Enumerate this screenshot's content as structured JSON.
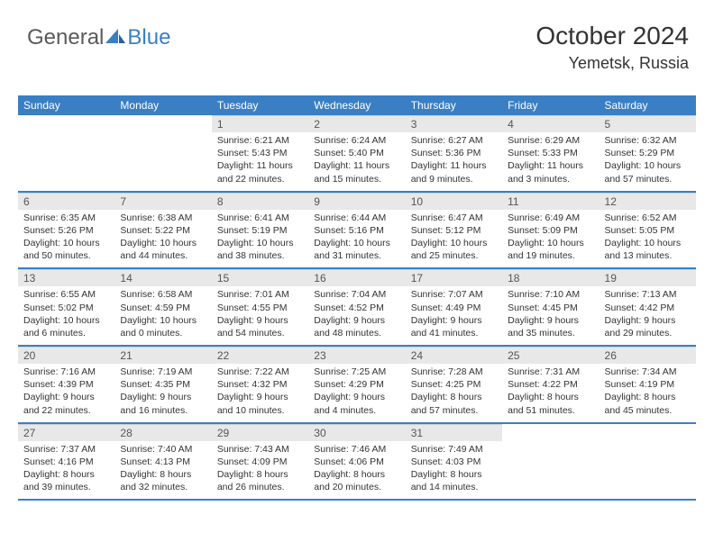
{
  "logo": {
    "general": "General",
    "blue": "Blue"
  },
  "header": {
    "month": "October 2024",
    "location": "Yemetsk, Russia"
  },
  "dayNames": [
    "Sunday",
    "Monday",
    "Tuesday",
    "Wednesday",
    "Thursday",
    "Friday",
    "Saturday"
  ],
  "colors": {
    "headerBlue": "#3a7fc4",
    "dayNumBg": "#e8e8e8",
    "text": "#333333",
    "borderBlue": "#3a7fc4"
  },
  "weeks": [
    [
      null,
      null,
      {
        "n": "1",
        "sunrise": "6:21 AM",
        "sunset": "5:43 PM",
        "daylight": "11 hours and 22 minutes."
      },
      {
        "n": "2",
        "sunrise": "6:24 AM",
        "sunset": "5:40 PM",
        "daylight": "11 hours and 15 minutes."
      },
      {
        "n": "3",
        "sunrise": "6:27 AM",
        "sunset": "5:36 PM",
        "daylight": "11 hours and 9 minutes."
      },
      {
        "n": "4",
        "sunrise": "6:29 AM",
        "sunset": "5:33 PM",
        "daylight": "11 hours and 3 minutes."
      },
      {
        "n": "5",
        "sunrise": "6:32 AM",
        "sunset": "5:29 PM",
        "daylight": "10 hours and 57 minutes."
      }
    ],
    [
      {
        "n": "6",
        "sunrise": "6:35 AM",
        "sunset": "5:26 PM",
        "daylight": "10 hours and 50 minutes."
      },
      {
        "n": "7",
        "sunrise": "6:38 AM",
        "sunset": "5:22 PM",
        "daylight": "10 hours and 44 minutes."
      },
      {
        "n": "8",
        "sunrise": "6:41 AM",
        "sunset": "5:19 PM",
        "daylight": "10 hours and 38 minutes."
      },
      {
        "n": "9",
        "sunrise": "6:44 AM",
        "sunset": "5:16 PM",
        "daylight": "10 hours and 31 minutes."
      },
      {
        "n": "10",
        "sunrise": "6:47 AM",
        "sunset": "5:12 PM",
        "daylight": "10 hours and 25 minutes."
      },
      {
        "n": "11",
        "sunrise": "6:49 AM",
        "sunset": "5:09 PM",
        "daylight": "10 hours and 19 minutes."
      },
      {
        "n": "12",
        "sunrise": "6:52 AM",
        "sunset": "5:05 PM",
        "daylight": "10 hours and 13 minutes."
      }
    ],
    [
      {
        "n": "13",
        "sunrise": "6:55 AM",
        "sunset": "5:02 PM",
        "daylight": "10 hours and 6 minutes."
      },
      {
        "n": "14",
        "sunrise": "6:58 AM",
        "sunset": "4:59 PM",
        "daylight": "10 hours and 0 minutes."
      },
      {
        "n": "15",
        "sunrise": "7:01 AM",
        "sunset": "4:55 PM",
        "daylight": "9 hours and 54 minutes."
      },
      {
        "n": "16",
        "sunrise": "7:04 AM",
        "sunset": "4:52 PM",
        "daylight": "9 hours and 48 minutes."
      },
      {
        "n": "17",
        "sunrise": "7:07 AM",
        "sunset": "4:49 PM",
        "daylight": "9 hours and 41 minutes."
      },
      {
        "n": "18",
        "sunrise": "7:10 AM",
        "sunset": "4:45 PM",
        "daylight": "9 hours and 35 minutes."
      },
      {
        "n": "19",
        "sunrise": "7:13 AM",
        "sunset": "4:42 PM",
        "daylight": "9 hours and 29 minutes."
      }
    ],
    [
      {
        "n": "20",
        "sunrise": "7:16 AM",
        "sunset": "4:39 PM",
        "daylight": "9 hours and 22 minutes."
      },
      {
        "n": "21",
        "sunrise": "7:19 AM",
        "sunset": "4:35 PM",
        "daylight": "9 hours and 16 minutes."
      },
      {
        "n": "22",
        "sunrise": "7:22 AM",
        "sunset": "4:32 PM",
        "daylight": "9 hours and 10 minutes."
      },
      {
        "n": "23",
        "sunrise": "7:25 AM",
        "sunset": "4:29 PM",
        "daylight": "9 hours and 4 minutes."
      },
      {
        "n": "24",
        "sunrise": "7:28 AM",
        "sunset": "4:25 PM",
        "daylight": "8 hours and 57 minutes."
      },
      {
        "n": "25",
        "sunrise": "7:31 AM",
        "sunset": "4:22 PM",
        "daylight": "8 hours and 51 minutes."
      },
      {
        "n": "26",
        "sunrise": "7:34 AM",
        "sunset": "4:19 PM",
        "daylight": "8 hours and 45 minutes."
      }
    ],
    [
      {
        "n": "27",
        "sunrise": "7:37 AM",
        "sunset": "4:16 PM",
        "daylight": "8 hours and 39 minutes."
      },
      {
        "n": "28",
        "sunrise": "7:40 AM",
        "sunset": "4:13 PM",
        "daylight": "8 hours and 32 minutes."
      },
      {
        "n": "29",
        "sunrise": "7:43 AM",
        "sunset": "4:09 PM",
        "daylight": "8 hours and 26 minutes."
      },
      {
        "n": "30",
        "sunrise": "7:46 AM",
        "sunset": "4:06 PM",
        "daylight": "8 hours and 20 minutes."
      },
      {
        "n": "31",
        "sunrise": "7:49 AM",
        "sunset": "4:03 PM",
        "daylight": "8 hours and 14 minutes."
      },
      null,
      null
    ]
  ]
}
